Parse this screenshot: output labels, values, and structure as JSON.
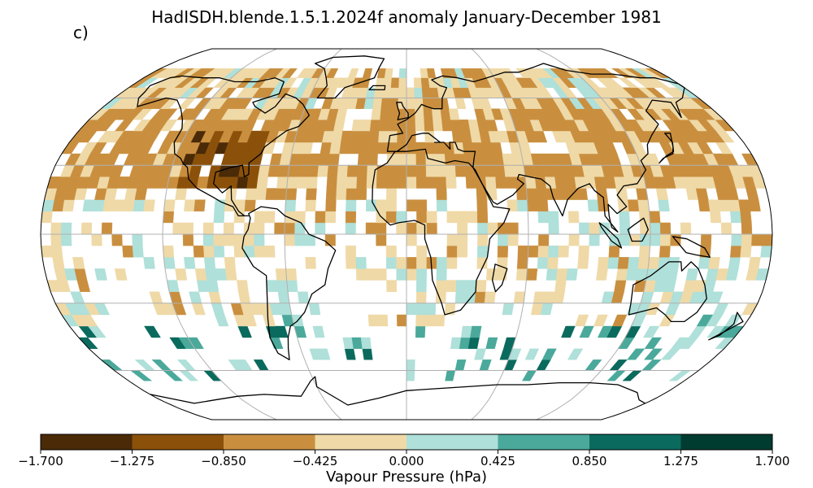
{
  "title": "HadISDH.blende.1.5.1.2024f anomaly January-December 1981",
  "panel_label": "c)",
  "colorbar": {
    "label": "Vapour Pressure (hPa)",
    "ticks": [
      "−1.700",
      "−1.275",
      "−0.850",
      "−0.425",
      "0.000",
      "0.425",
      "0.850",
      "1.275",
      "1.700"
    ],
    "tick_values": [
      -1.7,
      -1.275,
      -0.85,
      -0.425,
      0.0,
      0.425,
      0.85,
      1.275,
      1.7
    ],
    "colors": [
      "#4a2a07",
      "#8b510a",
      "#c98f3f",
      "#efd9a7",
      "#afe0d9",
      "#4aa99b",
      "#0a6a5d",
      "#003c30"
    ]
  },
  "map": {
    "projection": "robinson",
    "graticule_color": "#b0b0b0",
    "coastline_color": "#000000"
  }
}
